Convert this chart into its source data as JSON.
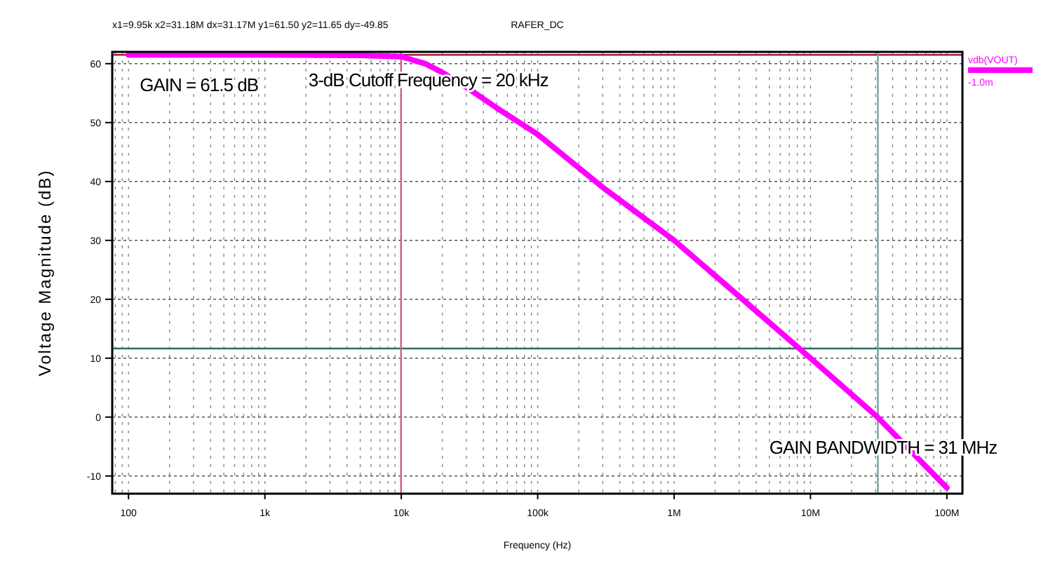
{
  "chart_data": {
    "type": "line",
    "title": "RAFER_DC",
    "xlabel": "Frequency (Hz)",
    "ylabel": "Voltage Magnitude (dB)",
    "log": "x",
    "xlim": [
      76,
      130000000
    ],
    "ylim": [
      -13,
      62
    ],
    "xticks": [
      {
        "value": 100,
        "label": "100"
      },
      {
        "value": 1000,
        "label": "1k"
      },
      {
        "value": 10000,
        "label": "10k"
      },
      {
        "value": 100000,
        "label": "100k"
      },
      {
        "value": 1000000,
        "label": "1M"
      },
      {
        "value": 10000000,
        "label": "10M"
      },
      {
        "value": 100000000,
        "label": "100M"
      }
    ],
    "yticks": [
      -10,
      0,
      10,
      20,
      30,
      40,
      50,
      60
    ],
    "grid": true,
    "legend": "right",
    "line_style": "solid",
    "series": [
      {
        "name": "vdb(VOUT)",
        "color": "#ff00ff",
        "x": [
          100,
          1000,
          5000,
          10000,
          15000,
          20000,
          30000,
          50000,
          100000,
          300000,
          1000000,
          3000000,
          10000000,
          31000000,
          100000000
        ],
        "values": [
          61.5,
          61.5,
          61.4,
          61.2,
          60,
          58.5,
          56,
          52.5,
          48,
          39,
          30,
          20.5,
          10,
          0,
          -12
        ]
      }
    ],
    "ref_lines": [
      {
        "axis": "y",
        "value": 61.5,
        "color": "#a0204a"
      },
      {
        "axis": "y",
        "value": 11.65,
        "color": "#2f6f60"
      },
      {
        "axis": "x",
        "value": 9950,
        "color": "#d06080"
      },
      {
        "axis": "x",
        "value": 31180000,
        "color": "#6fa0a0"
      }
    ],
    "annotations": [
      "x1=9.95k  x2=31.18M  dx=31.17M  y1=61.50  y2=11.65  dy=-49.85",
      "-1.0m",
      {
        "text": "GAIN = 61.5 dB",
        "x": 100,
        "y": 61.5
      },
      {
        "text": "3-dB Cutoff Frequency = 20 kHz",
        "x": 20000,
        "y": 58.5
      },
      {
        "text": "GAIN BANDWIDTH = 31 MHz",
        "x": 31000000,
        "y": 0
      }
    ]
  }
}
